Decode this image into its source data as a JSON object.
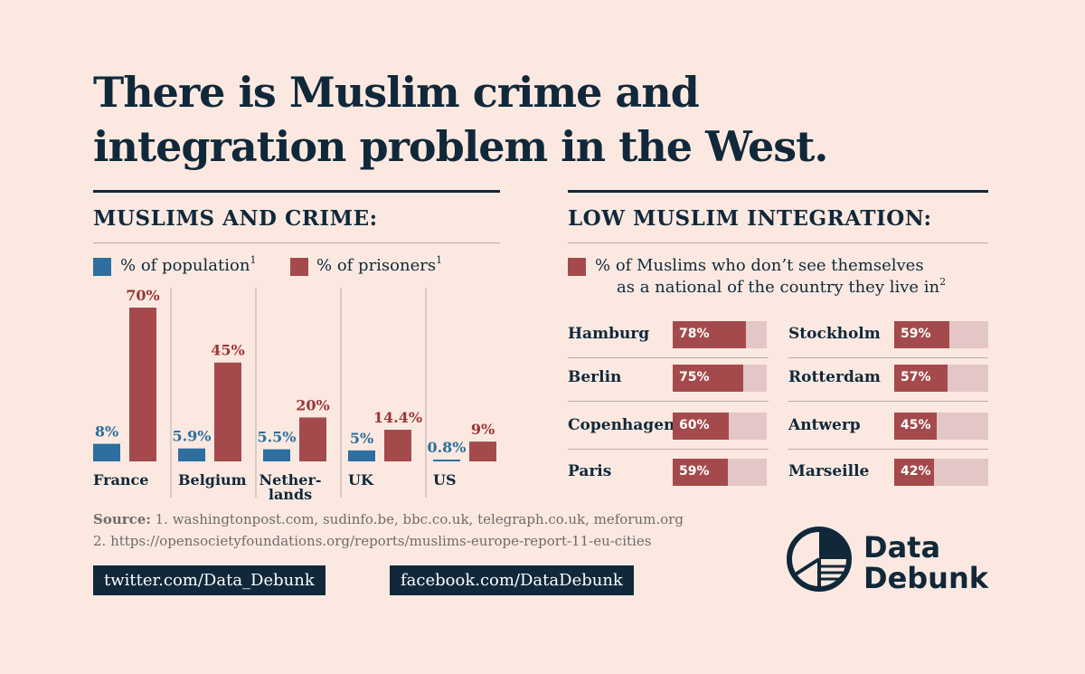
{
  "title_line1": "There is Muslim crime and",
  "title_line2": "integration problem in the West.",
  "colors": {
    "navy": "#10283a",
    "blue": "#2c6fa0",
    "red": "#a54a4c",
    "track": "#e3c6c5",
    "background": "#fbe9e1"
  },
  "crime_section": {
    "heading": "MUSLIMS AND CRIME:",
    "legend_population": "% of population",
    "legend_prisoners": "% of prisoners",
    "footnote_mark": "1"
  },
  "integration_section": {
    "heading": "LOW MUSLIM INTEGRATION:",
    "legend_line1": "% of Muslims who don’t see themselves",
    "legend_line2": "as a national of the country they live in",
    "footnote_mark": "2"
  },
  "chart_data": [
    {
      "type": "bar",
      "title": "MUSLIMS AND CRIME:",
      "categories": [
        "France",
        "Belgium",
        "Nether-lands",
        "UK",
        "US"
      ],
      "category_lines": [
        [
          "France"
        ],
        [
          "Belgium"
        ],
        [
          "Nether-",
          "lands"
        ],
        [
          "UK"
        ],
        [
          "US"
        ]
      ],
      "series": [
        {
          "name": "% of population",
          "values": [
            8,
            5.9,
            5.5,
            5,
            0.8
          ],
          "labels": [
            "8%",
            "5.9%",
            "5.5%",
            "5%",
            "0.8%"
          ]
        },
        {
          "name": "% of prisoners",
          "values": [
            70,
            45,
            20,
            14.4,
            9
          ],
          "labels": [
            "70%",
            "45%",
            "20%",
            "14.4%",
            "9%"
          ]
        }
      ],
      "ylim": [
        0,
        70
      ],
      "xlabel": "",
      "ylabel": ""
    },
    {
      "type": "bar",
      "title": "LOW MUSLIM INTEGRATION:",
      "orientation": "horizontal",
      "series": [
        {
          "name": "% of Muslims who don’t see themselves as a national of the country they live in"
        }
      ],
      "left_column": [
        {
          "city": "Hamburg",
          "value": 78,
          "label": "78%"
        },
        {
          "city": "Berlin",
          "value": 75,
          "label": "75%"
        },
        {
          "city": "Copenhagen",
          "value": 60,
          "label": "60%"
        },
        {
          "city": "Paris",
          "value": 59,
          "label": "59%"
        }
      ],
      "right_column": [
        {
          "city": "Stockholm",
          "value": 59,
          "label": "59%"
        },
        {
          "city": "Rotterdam",
          "value": 57,
          "label": "57%"
        },
        {
          "city": "Antwerp",
          "value": 45,
          "label": "45%"
        },
        {
          "city": "Marseille",
          "value": 42,
          "label": "42%"
        }
      ],
      "xlim": [
        0,
        100
      ]
    }
  ],
  "source": {
    "label": "Source:",
    "line1": " 1. washingtonpost.com, sudinfo.be, bbc.co.uk, telegraph.co.uk, meforum.org",
    "line2": "2. https://opensocietyfoundations.org/reports/muslims-europe-report-11-eu-cities"
  },
  "social": {
    "twitter": "twitter.com/Data_Debunk",
    "facebook": "facebook.com/DataDebunk"
  },
  "brand": {
    "line1": "Data",
    "line2": "Debunk",
    "logo": "pie-chart-logo-icon"
  }
}
